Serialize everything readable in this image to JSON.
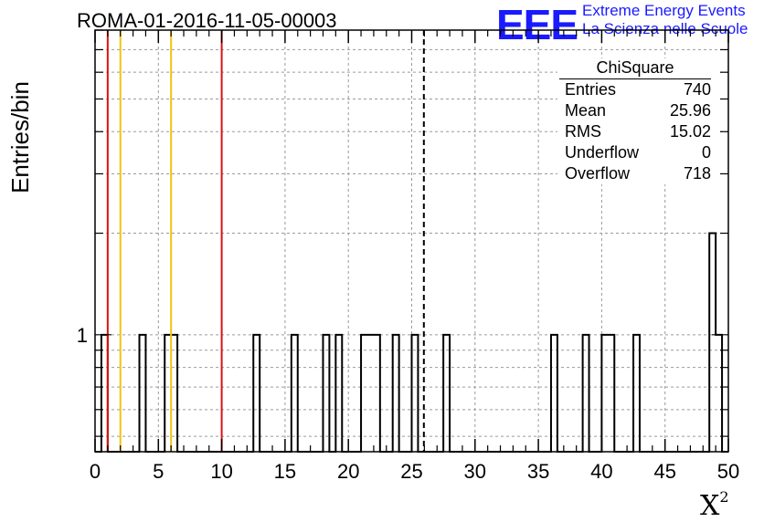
{
  "title": "ROMA-01-2016-11-05-00003",
  "logo": {
    "mark": "EEE",
    "line1": "Extreme Energy Events",
    "line2": "La Scienza nelle Scuole",
    "color": "#1a1aff"
  },
  "stats_box": {
    "title": "ChiSquare",
    "rows": [
      {
        "label": "Entries",
        "value": "740"
      },
      {
        "label": "Mean",
        "value": "25.96"
      },
      {
        "label": "RMS",
        "value": "15.02"
      },
      {
        "label": "Underflow",
        "value": "0"
      },
      {
        "label": "Overflow",
        "value": "718"
      }
    ]
  },
  "chart_data": {
    "type": "bar",
    "title": "ROMA-01-2016-11-05-00003",
    "xlabel": "X",
    "xlabel_superscript": "2",
    "ylabel": "Entries/bin",
    "xlim": [
      0,
      50
    ],
    "ylim": [
      0.45,
      8
    ],
    "y_scale": "log",
    "x_ticks": [
      0,
      5,
      10,
      15,
      20,
      25,
      30,
      35,
      40,
      45,
      50
    ],
    "y_tick_labels": [
      {
        "value": 1,
        "label": "1"
      }
    ],
    "grid": true,
    "bin_width": 0.5,
    "bins": [
      {
        "x": 0.5,
        "count": 1
      },
      {
        "x": 3.5,
        "count": 1
      },
      {
        "x": 5.5,
        "count": 1
      },
      {
        "x": 6.0,
        "count": 1
      },
      {
        "x": 12.5,
        "count": 1
      },
      {
        "x": 15.5,
        "count": 1
      },
      {
        "x": 18.0,
        "count": 1
      },
      {
        "x": 19.0,
        "count": 1
      },
      {
        "x": 21.0,
        "count": 1
      },
      {
        "x": 21.5,
        "count": 1
      },
      {
        "x": 22.0,
        "count": 1
      },
      {
        "x": 23.5,
        "count": 1
      },
      {
        "x": 25.0,
        "count": 1
      },
      {
        "x": 27.5,
        "count": 1
      },
      {
        "x": 36.0,
        "count": 1
      },
      {
        "x": 38.5,
        "count": 1
      },
      {
        "x": 40.0,
        "count": 1
      },
      {
        "x": 40.5,
        "count": 1
      },
      {
        "x": 42.5,
        "count": 1
      },
      {
        "x": 48.5,
        "count": 2
      },
      {
        "x": 49.0,
        "count": 1
      }
    ],
    "vertical_lines": [
      {
        "x": 1.0,
        "color": "#dd1111"
      },
      {
        "x": 2.0,
        "color": "#f2c40f"
      },
      {
        "x": 6.0,
        "color": "#f2c40f"
      },
      {
        "x": 10.0,
        "color": "#dd1111"
      }
    ],
    "mean_line": {
      "x": 25.96,
      "style": "dashed",
      "color": "#000000"
    }
  }
}
